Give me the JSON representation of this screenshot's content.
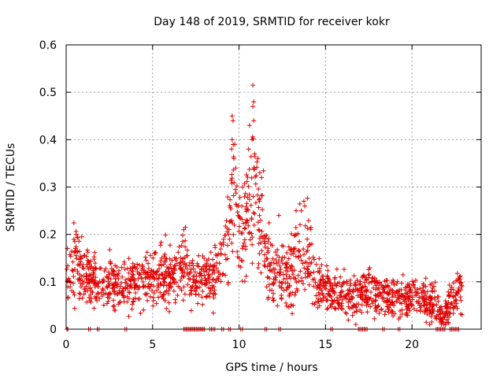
{
  "chart_data": {
    "type": "scatter",
    "title": "Day 148 of 2019, SRMTID for receiver kokr",
    "xlabel": "GPS time / hours",
    "ylabel": "SRMTID / TECUs",
    "xlim": [
      0,
      24
    ],
    "ylim": [
      0,
      0.6
    ],
    "xticks": [
      "0",
      "5",
      "10",
      "15",
      "20"
    ],
    "yticks": [
      "0",
      "0.1",
      "0.2",
      "0.3",
      "0.4",
      "0.5",
      "0.6"
    ],
    "grid": true,
    "marker": "+",
    "series_color": "#e00000",
    "profile": [
      {
        "x": 0.0,
        "y": 0.11,
        "s": 0.03
      },
      {
        "x": 0.5,
        "y": 0.13,
        "s": 0.035
      },
      {
        "x": 1.0,
        "y": 0.11,
        "s": 0.03
      },
      {
        "x": 2.0,
        "y": 0.1,
        "s": 0.025
      },
      {
        "x": 3.0,
        "y": 0.09,
        "s": 0.025
      },
      {
        "x": 4.0,
        "y": 0.1,
        "s": 0.025
      },
      {
        "x": 5.0,
        "y": 0.11,
        "s": 0.03
      },
      {
        "x": 6.0,
        "y": 0.11,
        "s": 0.03
      },
      {
        "x": 6.8,
        "y": 0.13,
        "s": 0.035
      },
      {
        "x": 7.5,
        "y": 0.1,
        "s": 0.025
      },
      {
        "x": 8.5,
        "y": 0.11,
        "s": 0.03
      },
      {
        "x": 9.2,
        "y": 0.17,
        "s": 0.045
      },
      {
        "x": 9.7,
        "y": 0.27,
        "s": 0.07
      },
      {
        "x": 10.2,
        "y": 0.19,
        "s": 0.05
      },
      {
        "x": 10.8,
        "y": 0.28,
        "s": 0.07
      },
      {
        "x": 11.3,
        "y": 0.21,
        "s": 0.05
      },
      {
        "x": 12.0,
        "y": 0.13,
        "s": 0.04
      },
      {
        "x": 12.7,
        "y": 0.1,
        "s": 0.03
      },
      {
        "x": 13.5,
        "y": 0.16,
        "s": 0.05
      },
      {
        "x": 14.0,
        "y": 0.14,
        "s": 0.045
      },
      {
        "x": 14.6,
        "y": 0.09,
        "s": 0.025
      },
      {
        "x": 15.5,
        "y": 0.07,
        "s": 0.02
      },
      {
        "x": 16.5,
        "y": 0.07,
        "s": 0.02
      },
      {
        "x": 17.5,
        "y": 0.085,
        "s": 0.02
      },
      {
        "x": 18.5,
        "y": 0.07,
        "s": 0.02
      },
      {
        "x": 19.5,
        "y": 0.065,
        "s": 0.02
      },
      {
        "x": 20.5,
        "y": 0.065,
        "s": 0.02
      },
      {
        "x": 21.3,
        "y": 0.06,
        "s": 0.025
      },
      {
        "x": 21.7,
        "y": 0.02,
        "s": 0.015
      },
      {
        "x": 22.1,
        "y": 0.05,
        "s": 0.02
      },
      {
        "x": 22.8,
        "y": 0.08,
        "s": 0.02
      }
    ],
    "x_range": [
      0,
      22.9
    ],
    "n_points": 1700,
    "peaks": [
      {
        "x": 9.6,
        "y": 0.45
      },
      {
        "x": 9.65,
        "y": 0.44
      },
      {
        "x": 9.6,
        "y": 0.4
      },
      {
        "x": 9.75,
        "y": 0.39
      },
      {
        "x": 9.7,
        "y": 0.36
      },
      {
        "x": 9.8,
        "y": 0.34
      },
      {
        "x": 10.8,
        "y": 0.515
      },
      {
        "x": 10.85,
        "y": 0.48
      },
      {
        "x": 10.8,
        "y": 0.47
      },
      {
        "x": 10.85,
        "y": 0.44
      },
      {
        "x": 10.6,
        "y": 0.43
      },
      {
        "x": 10.75,
        "y": 0.4
      },
      {
        "x": 10.55,
        "y": 0.38
      },
      {
        "x": 10.9,
        "y": 0.37
      },
      {
        "x": 11.1,
        "y": 0.36
      },
      {
        "x": 11.2,
        "y": 0.33
      },
      {
        "x": 11.3,
        "y": 0.32
      },
      {
        "x": 10.2,
        "y": 0.3
      },
      {
        "x": 13.75,
        "y": 0.27
      },
      {
        "x": 13.8,
        "y": 0.26
      },
      {
        "x": 13.6,
        "y": 0.25
      },
      {
        "x": 13.3,
        "y": 0.25
      },
      {
        "x": 12.3,
        "y": 0.24
      },
      {
        "x": 6.8,
        "y": 0.21
      },
      {
        "x": 6.9,
        "y": 0.215
      },
      {
        "x": 0.9,
        "y": 0.195
      },
      {
        "x": 0.45,
        "y": 0.19
      },
      {
        "x": 0.5,
        "y": 0.185
      }
    ],
    "zero_bands": [
      [
        0.05,
        0.1
      ],
      [
        1.3,
        1.4
      ],
      [
        1.8,
        1.9
      ],
      [
        3.4,
        3.5
      ],
      [
        6.8,
        8.0
      ],
      [
        8.3,
        8.6
      ],
      [
        9.0,
        9.1
      ],
      [
        9.4,
        9.5
      ],
      [
        10.1,
        10.2
      ],
      [
        11.5,
        11.6
      ],
      [
        12.3,
        12.4
      ],
      [
        15.3,
        15.4
      ],
      [
        16.9,
        17.4
      ],
      [
        18.3,
        18.4
      ],
      [
        19.2,
        19.3
      ],
      [
        21.4,
        21.9
      ],
      [
        22.2,
        22.7
      ]
    ]
  }
}
